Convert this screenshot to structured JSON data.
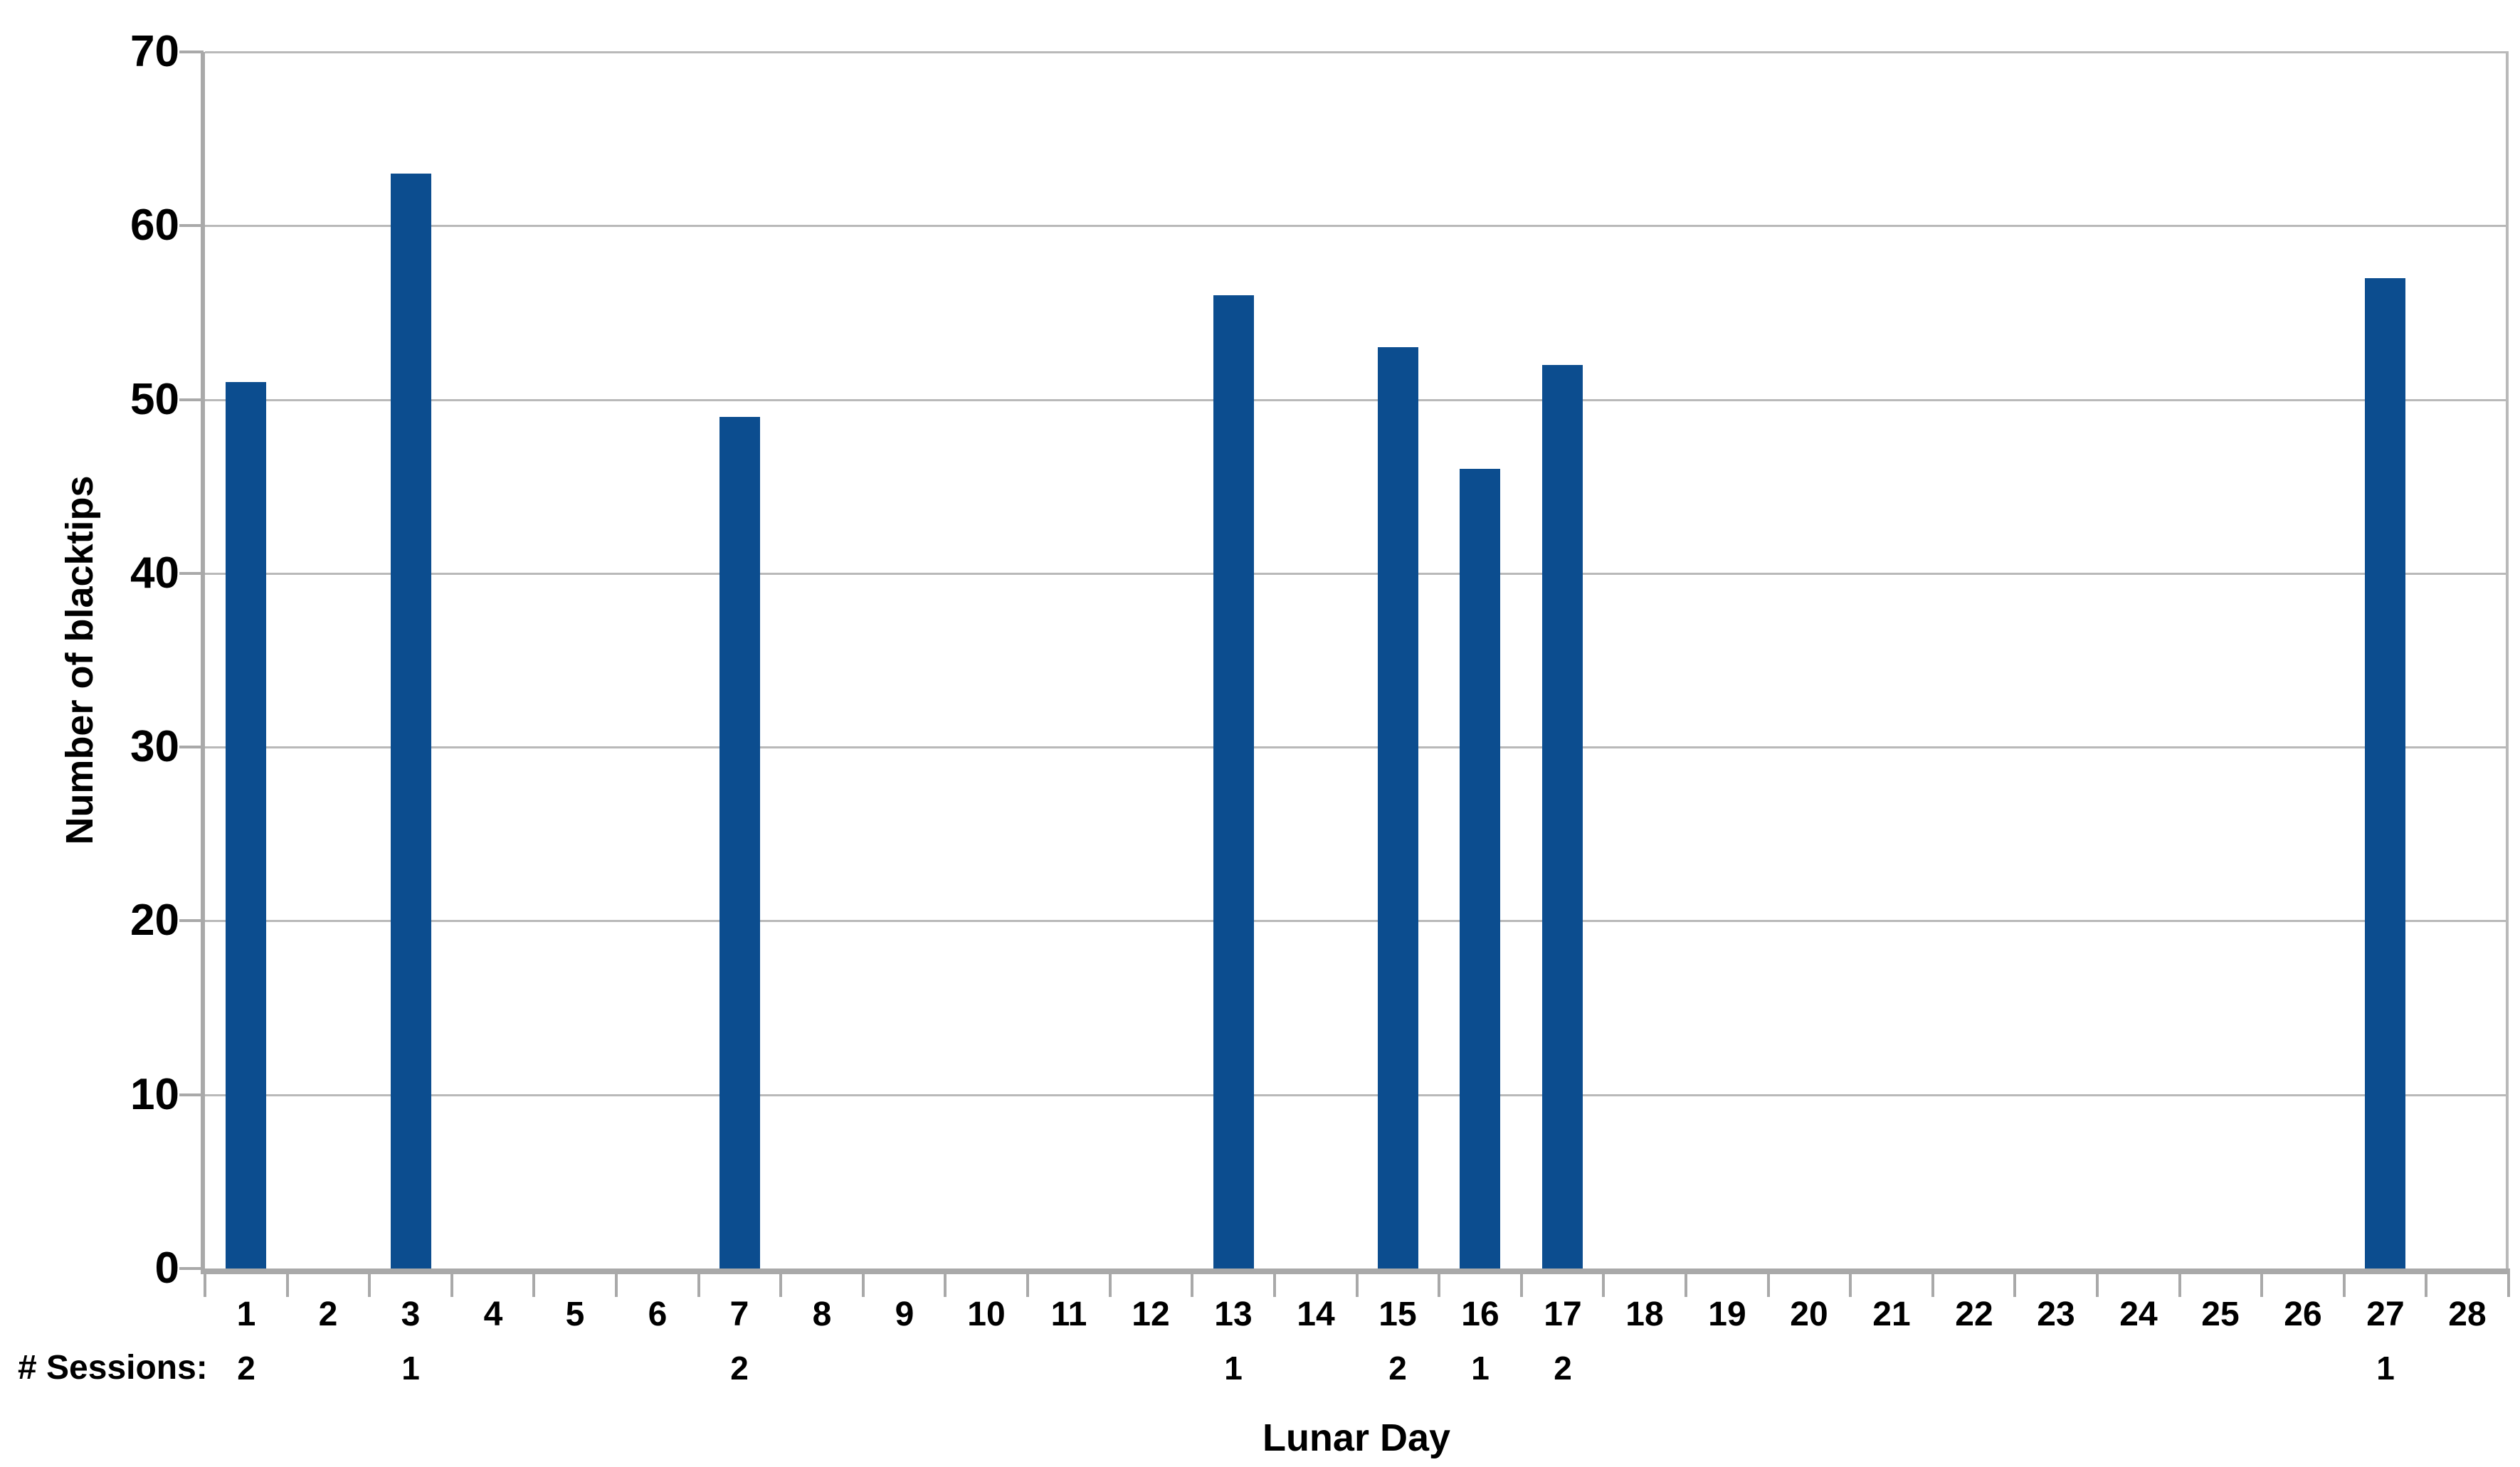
{
  "chart_data": {
    "type": "bar",
    "title": "",
    "xlabel": "Lunar Day",
    "ylabel": "Number of blacktips",
    "ylim": [
      0,
      70
    ],
    "yticks": [
      0,
      10,
      20,
      30,
      40,
      50,
      60,
      70
    ],
    "grid": true,
    "legend": false,
    "categories": [
      1,
      2,
      3,
      4,
      5,
      6,
      7,
      8,
      9,
      10,
      11,
      12,
      13,
      14,
      15,
      16,
      17,
      18,
      19,
      20,
      21,
      22,
      23,
      24,
      25,
      26,
      27,
      28
    ],
    "values": [
      51,
      null,
      63,
      null,
      null,
      null,
      49,
      null,
      null,
      null,
      null,
      null,
      56,
      null,
      53,
      46,
      52,
      null,
      null,
      null,
      null,
      null,
      null,
      null,
      null,
      null,
      57,
      null
    ],
    "sessions_label": "# Sessions:",
    "sessions": [
      2,
      null,
      1,
      null,
      null,
      null,
      2,
      null,
      null,
      null,
      null,
      null,
      1,
      null,
      2,
      1,
      2,
      null,
      null,
      null,
      null,
      null,
      null,
      null,
      null,
      null,
      1,
      null
    ],
    "bar_color": "#0c4d8f",
    "gridline_color": "#b9b9b9",
    "axis_color": "#a9a9a9",
    "text_color": "#000000"
  }
}
